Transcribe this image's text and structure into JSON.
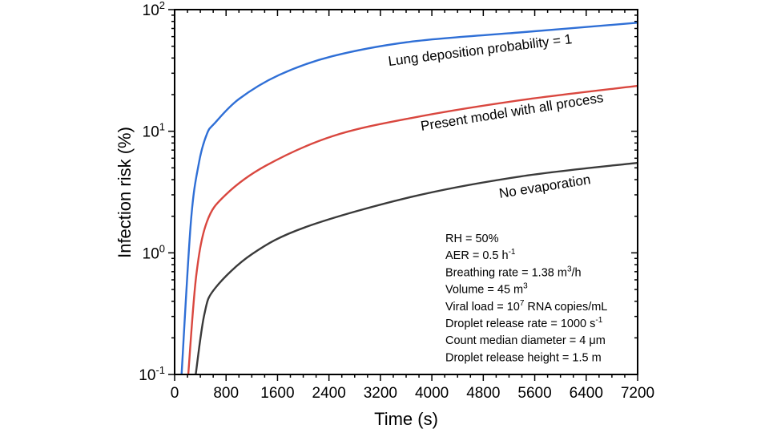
{
  "chart_data": {
    "type": "line",
    "xlabel": "Time (s)",
    "ylabel": "Infection risk (%)",
    "xlim": [
      0,
      7200
    ],
    "ylim": [
      0.1,
      100
    ],
    "yscale": "log",
    "grid": false,
    "xticks": [
      "0",
      "800",
      "1600",
      "2400",
      "3200",
      "4000",
      "4800",
      "5600",
      "6400",
      "7200"
    ],
    "yticks": [
      {
        "base": "10",
        "exp": "-1"
      },
      {
        "base": "10",
        "exp": "0"
      },
      {
        "base": "10",
        "exp": "1"
      },
      {
        "base": "10",
        "exp": "2"
      }
    ],
    "series": [
      {
        "name": "Lung deposition probability = 1",
        "color": "#2f6fd6",
        "x": [
          108,
          253,
          378,
          502,
          627,
          1000,
          1623,
          2454,
          3700,
          5380,
          7200
        ],
        "y": [
          0.1,
          1.8,
          5.5,
          9.5,
          11.7,
          18.4,
          29,
          41.4,
          54.7,
          65,
          78
        ]
      },
      {
        "name": "Present model with all process",
        "color": "#d9473f",
        "x": [
          212,
          336,
          502,
          793,
          1416,
          2454,
          3700,
          5380,
          7200
        ],
        "y": [
          0.1,
          0.65,
          1.8,
          3.0,
          5.2,
          9.1,
          12.9,
          18,
          23.6
        ]
      },
      {
        "name": "No evaporation",
        "color": "#3a3a3a",
        "x": [
          328,
          461,
          627,
          1208,
          2039,
          3700,
          5380,
          7200
        ],
        "y": [
          0.1,
          0.31,
          0.51,
          0.98,
          1.63,
          2.9,
          4.25,
          5.5
        ]
      }
    ],
    "parameters": [
      {
        "text": "RH = 50%"
      },
      {
        "text": "AER = 0.5 h",
        "sup": "-1"
      },
      {
        "text": "Breathing rate = 1.38 m",
        "sup": "3",
        "tail": "/h"
      },
      {
        "text": "Volume = 45 m",
        "sup": "3"
      },
      {
        "text": "Viral load = 10",
        "sup": "7",
        "tail": " RNA copies/mL"
      },
      {
        "text": "Droplet release rate = 1000 s",
        "sup": "-1"
      },
      {
        "text": "Count median diameter = 4 μm"
      },
      {
        "text": "Droplet release height = 1.5 m"
      }
    ]
  }
}
